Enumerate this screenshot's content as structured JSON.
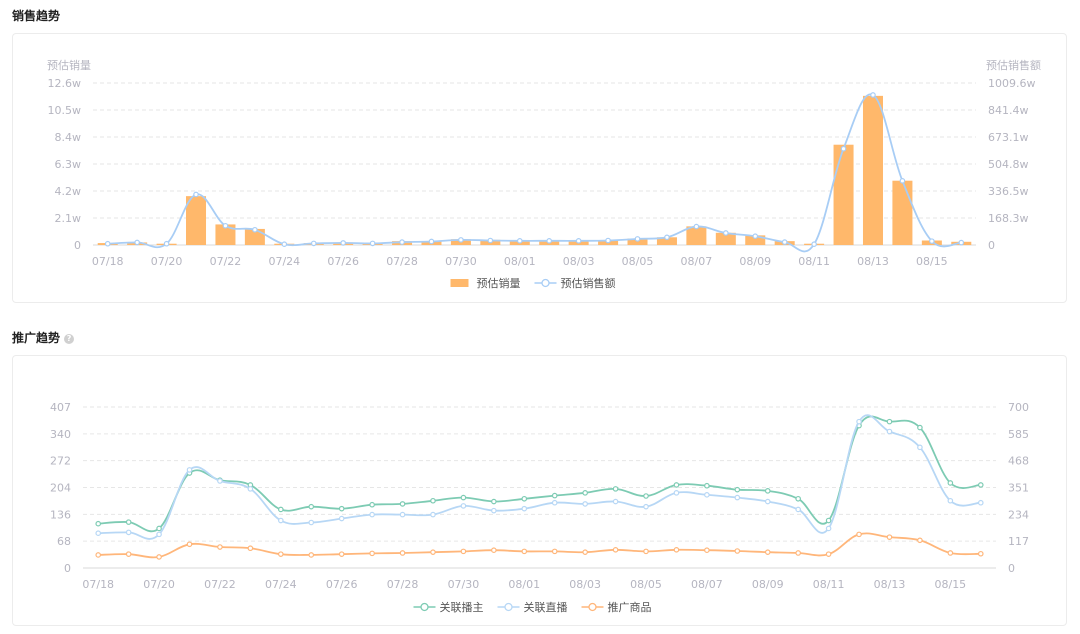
{
  "sections": {
    "sales_title": "销售趋势",
    "promo_title": "推广趋势",
    "promo_help": "?"
  },
  "chart_data": [
    {
      "id": "sales",
      "type": "bar",
      "title": "销售趋势",
      "ylabel_left": "预估销量",
      "ylabel_right": "预估销售额",
      "x_tick_labels": [
        "07/18",
        "07/20",
        "07/22",
        "07/24",
        "07/26",
        "07/28",
        "07/30",
        "08/01",
        "08/03",
        "08/05",
        "08/07",
        "08/09",
        "08/11",
        "08/13",
        "08/15"
      ],
      "left_ticks": [
        "0",
        "2.1w",
        "4.2w",
        "6.3w",
        "8.4w",
        "10.5w",
        "12.6w"
      ],
      "right_ticks": [
        "0",
        "168.3w",
        "336.5w",
        "504.8w",
        "673.1w",
        "841.4w",
        "1009.6w"
      ],
      "ylim_left": [
        0,
        12.6
      ],
      "ylim_right": [
        0,
        1009.6
      ],
      "grid": true,
      "legend_position": "bottom-center",
      "x_count": 30,
      "series": [
        {
          "name": "预估销量",
          "type": "bar",
          "axis": "left",
          "unit": "w",
          "color": "#ffb86b",
          "values": [
            0.15,
            0.2,
            0.1,
            3.8,
            1.6,
            1.25,
            0.1,
            0.15,
            0.2,
            0.15,
            0.3,
            0.3,
            0.45,
            0.4,
            0.35,
            0.35,
            0.35,
            0.35,
            0.5,
            0.6,
            1.45,
            0.95,
            0.75,
            0.3,
            0.1,
            7.8,
            11.6,
            5.0,
            0.35,
            0.25
          ]
        },
        {
          "name": "预估销售额",
          "type": "line",
          "axis": "right",
          "unit": "w",
          "color": "#a8cdf5",
          "values": [
            8,
            16,
            8,
            315,
            120,
            95,
            5,
            10,
            13,
            10,
            18,
            22,
            32,
            28,
            26,
            26,
            26,
            28,
            38,
            48,
            115,
            75,
            55,
            18,
            5,
            600,
            935,
            400,
            24,
            15
          ]
        }
      ]
    },
    {
      "id": "promo",
      "type": "line",
      "title": "推广趋势",
      "x_tick_labels": [
        "07/18",
        "07/20",
        "07/22",
        "07/24",
        "07/26",
        "07/28",
        "07/30",
        "08/01",
        "08/03",
        "08/05",
        "08/07",
        "08/09",
        "08/11",
        "08/13",
        "08/15"
      ],
      "left_ticks": [
        "0",
        "68",
        "136",
        "204",
        "272",
        "340",
        "407"
      ],
      "right_ticks": [
        "0",
        "117",
        "234",
        "351",
        "468",
        "585",
        "700"
      ],
      "ylim_left": [
        0,
        407
      ],
      "ylim_right": [
        0,
        700
      ],
      "grid": true,
      "legend_position": "bottom-center",
      "x_count": 30,
      "series": [
        {
          "name": "关联播主",
          "axis": "left",
          "color": "#7dcbb3",
          "values": [
            112,
            116,
            100,
            240,
            222,
            210,
            148,
            155,
            150,
            160,
            162,
            170,
            178,
            168,
            175,
            183,
            190,
            200,
            182,
            210,
            208,
            198,
            195,
            175,
            120,
            360,
            370,
            355,
            215,
            210
          ]
        },
        {
          "name": "关联直播",
          "axis": "left",
          "color": "#b7d7f5",
          "values": [
            88,
            90,
            85,
            248,
            220,
            200,
            120,
            115,
            125,
            135,
            135,
            135,
            157,
            145,
            150,
            165,
            162,
            168,
            155,
            190,
            185,
            178,
            168,
            148,
            100,
            370,
            345,
            305,
            170,
            165
          ]
        },
        {
          "name": "推广商品",
          "axis": "left",
          "color": "#ffb67a",
          "values": [
            33,
            35,
            28,
            60,
            53,
            50,
            35,
            33,
            35,
            37,
            38,
            40,
            42,
            45,
            42,
            42,
            40,
            46,
            42,
            46,
            45,
            43,
            40,
            38,
            35,
            85,
            78,
            70,
            38,
            36
          ]
        }
      ]
    }
  ]
}
